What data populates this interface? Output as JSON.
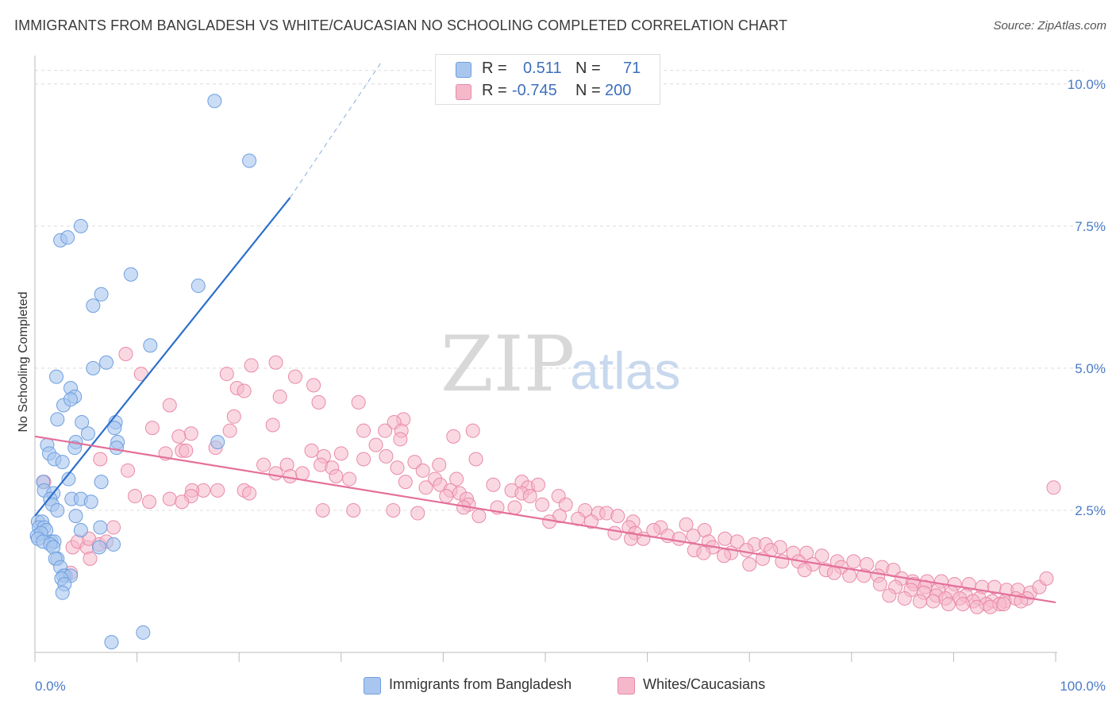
{
  "header": {
    "title": "IMMIGRANTS FROM BANGLADESH VS WHITE/CAUCASIAN NO SCHOOLING COMPLETED CORRELATION CHART",
    "source": "Source: ZipAtlas.com"
  },
  "watermark": {
    "zip": "ZIP",
    "atlas": "atlas"
  },
  "stats": {
    "r_label": "R =",
    "n_label": "N =",
    "series1": {
      "r": "0.511",
      "n": "71"
    },
    "series2": {
      "r": "-0.745",
      "n": "200"
    }
  },
  "colors": {
    "blue_fill": "#a9c6ee",
    "blue_stroke": "#6e9fe0",
    "blue_line": "#2d6fcc",
    "pink_fill": "#f5b8cb",
    "pink_stroke": "#e98aa8",
    "pink_line": "#e4709a"
  },
  "chart_data": {
    "type": "scatter",
    "title": "IMMIGRANTS FROM BANGLADESH VS WHITE/CAUCASIAN NO SCHOOLING COMPLETED CORRELATION CHART",
    "xlabel": "",
    "ylabel": "No Schooling Completed",
    "xlim": [
      0,
      100
    ],
    "ylim": [
      0,
      10.5
    ],
    "x_tick_labels": [
      "0.0%",
      "100.0%"
    ],
    "y_ticks": [
      {
        "value": 2.5,
        "label": "2.5%"
      },
      {
        "value": 5.0,
        "label": "5.0%"
      },
      {
        "value": 7.5,
        "label": "7.5%"
      },
      {
        "value": 10.0,
        "label": "10.0%"
      }
    ],
    "grid": true,
    "legend_position": "bottom-center",
    "series": [
      {
        "name": "Immigrants from Bangladesh",
        "r": 0.511,
        "n": 71,
        "trend": {
          "x0": 0,
          "y0": 2.4,
          "x1": 25,
          "y1": 8.0,
          "dashed_to": {
            "x": 34,
            "y": 10.4
          }
        },
        "points": [
          [
            17.6,
            9.7
          ],
          [
            21.0,
            8.65
          ],
          [
            4.5,
            7.5
          ],
          [
            2.5,
            7.25
          ],
          [
            3.2,
            7.3
          ],
          [
            9.4,
            6.65
          ],
          [
            16.0,
            6.45
          ],
          [
            6.5,
            6.3
          ],
          [
            5.7,
            6.1
          ],
          [
            11.3,
            5.4
          ],
          [
            5.7,
            5.0
          ],
          [
            7.0,
            5.1
          ],
          [
            2.1,
            4.85
          ],
          [
            3.5,
            4.65
          ],
          [
            3.9,
            4.5
          ],
          [
            2.8,
            4.35
          ],
          [
            3.5,
            4.45
          ],
          [
            2.2,
            4.1
          ],
          [
            4.6,
            4.05
          ],
          [
            7.9,
            4.05
          ],
          [
            5.2,
            3.85
          ],
          [
            7.8,
            3.95
          ],
          [
            1.2,
            3.65
          ],
          [
            8.1,
            3.7
          ],
          [
            4.0,
            3.7
          ],
          [
            1.4,
            3.5
          ],
          [
            17.9,
            3.7
          ],
          [
            3.9,
            3.6
          ],
          [
            8.0,
            3.6
          ],
          [
            1.9,
            3.4
          ],
          [
            2.7,
            3.35
          ],
          [
            0.8,
            3.0
          ],
          [
            0.9,
            2.85
          ],
          [
            3.3,
            3.05
          ],
          [
            6.5,
            3.0
          ],
          [
            1.8,
            2.8
          ],
          [
            1.5,
            2.7
          ],
          [
            3.6,
            2.7
          ],
          [
            4.5,
            2.7
          ],
          [
            5.5,
            2.65
          ],
          [
            1.7,
            2.6
          ],
          [
            2.2,
            2.5
          ],
          [
            0.3,
            2.3
          ],
          [
            0.7,
            2.3
          ],
          [
            4.0,
            2.4
          ],
          [
            0.4,
            2.2
          ],
          [
            0.9,
            2.2
          ],
          [
            1.1,
            2.15
          ],
          [
            0.2,
            2.05
          ],
          [
            0.6,
            2.1
          ],
          [
            6.4,
            2.2
          ],
          [
            4.5,
            2.15
          ],
          [
            0.3,
            2.0
          ],
          [
            1.6,
            1.95
          ],
          [
            1.9,
            1.95
          ],
          [
            0.8,
            1.95
          ],
          [
            1.5,
            1.9
          ],
          [
            7.7,
            1.9
          ],
          [
            1.8,
            1.85
          ],
          [
            6.3,
            1.85
          ],
          [
            2.2,
            1.65
          ],
          [
            2.0,
            1.65
          ],
          [
            2.5,
            1.5
          ],
          [
            3.0,
            1.35
          ],
          [
            2.8,
            1.35
          ],
          [
            3.5,
            1.35
          ],
          [
            2.6,
            1.3
          ],
          [
            2.9,
            1.2
          ],
          [
            2.7,
            1.05
          ],
          [
            10.6,
            0.35
          ],
          [
            7.5,
            0.18
          ]
        ]
      },
      {
        "name": "Whites/Caucasians",
        "r": -0.745,
        "n": 200,
        "trend": {
          "x0": 0,
          "y0": 3.8,
          "x1": 100,
          "y1": 0.88
        },
        "points": [
          [
            23.6,
            5.1
          ],
          [
            8.9,
            5.25
          ],
          [
            21.2,
            5.05
          ],
          [
            10.4,
            4.9
          ],
          [
            18.8,
            4.9
          ],
          [
            25.5,
            4.85
          ],
          [
            19.8,
            4.65
          ],
          [
            20.5,
            4.6
          ],
          [
            24.0,
            4.5
          ],
          [
            27.3,
            4.7
          ],
          [
            13.2,
            4.35
          ],
          [
            27.8,
            4.4
          ],
          [
            31.7,
            4.4
          ],
          [
            36.1,
            4.1
          ],
          [
            35.2,
            4.05
          ],
          [
            19.5,
            4.15
          ],
          [
            23.3,
            4.0
          ],
          [
            11.5,
            3.95
          ],
          [
            15.3,
            3.85
          ],
          [
            19.1,
            3.9
          ],
          [
            32.2,
            3.9
          ],
          [
            34.3,
            3.9
          ],
          [
            35.9,
            3.9
          ],
          [
            42.9,
            3.9
          ],
          [
            14.1,
            3.8
          ],
          [
            41.0,
            3.8
          ],
          [
            35.8,
            3.75
          ],
          [
            33.4,
            3.65
          ],
          [
            12.8,
            3.5
          ],
          [
            14.4,
            3.55
          ],
          [
            14.8,
            3.55
          ],
          [
            17.7,
            3.6
          ],
          [
            27.1,
            3.55
          ],
          [
            30.0,
            3.5
          ],
          [
            28.3,
            3.45
          ],
          [
            28.0,
            3.3
          ],
          [
            34.4,
            3.45
          ],
          [
            32.2,
            3.4
          ],
          [
            43.2,
            3.4
          ],
          [
            37.2,
            3.35
          ],
          [
            6.4,
            3.4
          ],
          [
            22.4,
            3.3
          ],
          [
            24.7,
            3.3
          ],
          [
            29.1,
            3.25
          ],
          [
            35.5,
            3.25
          ],
          [
            38.0,
            3.2
          ],
          [
            39.6,
            3.3
          ],
          [
            9.1,
            3.2
          ],
          [
            23.6,
            3.15
          ],
          [
            26.2,
            3.15
          ],
          [
            25.0,
            3.1
          ],
          [
            29.5,
            3.1
          ],
          [
            30.8,
            3.05
          ],
          [
            36.3,
            3.0
          ],
          [
            39.2,
            3.05
          ],
          [
            41.3,
            3.05
          ],
          [
            44.9,
            2.95
          ],
          [
            47.7,
            3.0
          ],
          [
            48.3,
            2.9
          ],
          [
            49.3,
            2.95
          ],
          [
            38.3,
            2.9
          ],
          [
            39.7,
            2.95
          ],
          [
            40.7,
            2.85
          ],
          [
            41.6,
            2.8
          ],
          [
            40.3,
            2.75
          ],
          [
            46.7,
            2.85
          ],
          [
            47.7,
            2.8
          ],
          [
            48.5,
            2.75
          ],
          [
            51.3,
            2.75
          ],
          [
            0.9,
            3.0
          ],
          [
            16.5,
            2.85
          ],
          [
            20.5,
            2.85
          ],
          [
            15.4,
            2.85
          ],
          [
            17.9,
            2.85
          ],
          [
            9.8,
            2.75
          ],
          [
            15.3,
            2.75
          ],
          [
            13.2,
            2.7
          ],
          [
            42.3,
            2.7
          ],
          [
            11.2,
            2.65
          ],
          [
            14.4,
            2.65
          ],
          [
            21.0,
            2.8
          ],
          [
            42.5,
            2.6
          ],
          [
            45.3,
            2.55
          ],
          [
            47.0,
            2.55
          ],
          [
            49.7,
            2.6
          ],
          [
            52.0,
            2.6
          ],
          [
            53.9,
            2.5
          ],
          [
            55.2,
            2.45
          ],
          [
            56.0,
            2.45
          ],
          [
            57.1,
            2.4
          ],
          [
            51.4,
            2.4
          ],
          [
            53.2,
            2.35
          ],
          [
            54.5,
            2.3
          ],
          [
            50.4,
            2.3
          ],
          [
            58.6,
            2.3
          ],
          [
            42.0,
            2.55
          ],
          [
            43.5,
            2.4
          ],
          [
            35.1,
            2.5
          ],
          [
            37.5,
            2.45
          ],
          [
            31.2,
            2.5
          ],
          [
            28.2,
            2.5
          ],
          [
            58.2,
            2.2
          ],
          [
            61.3,
            2.2
          ],
          [
            63.8,
            2.25
          ],
          [
            65.6,
            2.15
          ],
          [
            56.8,
            2.1
          ],
          [
            58.8,
            2.1
          ],
          [
            60.6,
            2.15
          ],
          [
            62.0,
            2.05
          ],
          [
            63.1,
            2.0
          ],
          [
            64.5,
            2.05
          ],
          [
            59.6,
            2.0
          ],
          [
            58.4,
            2.0
          ],
          [
            66.0,
            1.95
          ],
          [
            67.6,
            2.0
          ],
          [
            68.8,
            1.95
          ],
          [
            70.5,
            1.9
          ],
          [
            71.6,
            1.9
          ],
          [
            73.0,
            1.85
          ],
          [
            64.6,
            1.8
          ],
          [
            66.4,
            1.85
          ],
          [
            65.5,
            1.75
          ],
          [
            68.2,
            1.75
          ],
          [
            69.7,
            1.8
          ],
          [
            72.1,
            1.8
          ],
          [
            74.3,
            1.75
          ],
          [
            75.6,
            1.75
          ],
          [
            77.1,
            1.7
          ],
          [
            67.5,
            1.7
          ],
          [
            71.3,
            1.65
          ],
          [
            73.2,
            1.6
          ],
          [
            74.8,
            1.6
          ],
          [
            76.2,
            1.55
          ],
          [
            78.6,
            1.6
          ],
          [
            80.2,
            1.6
          ],
          [
            81.5,
            1.55
          ],
          [
            83.0,
            1.5
          ],
          [
            84.1,
            1.45
          ],
          [
            79.0,
            1.5
          ],
          [
            77.5,
            1.45
          ],
          [
            75.4,
            1.45
          ],
          [
            70.0,
            1.55
          ],
          [
            78.3,
            1.4
          ],
          [
            79.8,
            1.35
          ],
          [
            81.2,
            1.35
          ],
          [
            82.6,
            1.35
          ],
          [
            84.9,
            1.3
          ],
          [
            86.0,
            1.25
          ],
          [
            87.4,
            1.25
          ],
          [
            88.8,
            1.25
          ],
          [
            90.1,
            1.2
          ],
          [
            91.5,
            1.2
          ],
          [
            92.8,
            1.15
          ],
          [
            94.0,
            1.15
          ],
          [
            95.2,
            1.1
          ],
          [
            96.3,
            1.1
          ],
          [
            97.5,
            1.05
          ],
          [
            98.4,
            1.15
          ],
          [
            99.1,
            1.3
          ],
          [
            99.8,
            2.9
          ],
          [
            86.1,
            1.2
          ],
          [
            87.2,
            1.15
          ],
          [
            88.5,
            1.1
          ],
          [
            89.8,
            1.05
          ],
          [
            91.2,
            1.0
          ],
          [
            92.5,
            0.95
          ],
          [
            93.8,
            0.9
          ],
          [
            95.0,
            0.9
          ],
          [
            96.1,
            0.95
          ],
          [
            97.2,
            0.95
          ],
          [
            82.8,
            1.2
          ],
          [
            84.3,
            1.15
          ],
          [
            85.8,
            1.1
          ],
          [
            87.1,
            1.05
          ],
          [
            88.3,
            1.0
          ],
          [
            89.2,
            0.95
          ],
          [
            90.6,
            0.95
          ],
          [
            91.9,
            0.9
          ],
          [
            93.2,
            0.85
          ],
          [
            94.5,
            0.85
          ],
          [
            83.7,
            1.0
          ],
          [
            85.2,
            0.95
          ],
          [
            86.7,
            0.9
          ],
          [
            88.0,
            0.9
          ],
          [
            89.5,
            0.85
          ],
          [
            90.9,
            0.85
          ],
          [
            92.3,
            0.8
          ],
          [
            93.6,
            0.8
          ],
          [
            94.9,
            0.85
          ],
          [
            96.6,
            0.9
          ],
          [
            3.7,
            1.85
          ],
          [
            4.2,
            1.95
          ],
          [
            5.1,
            1.85
          ],
          [
            5.3,
            2.0
          ],
          [
            6.3,
            1.9
          ],
          [
            7.0,
            1.95
          ],
          [
            7.7,
            2.2
          ],
          [
            3.5,
            1.4
          ],
          [
            5.4,
            1.65
          ]
        ]
      }
    ]
  },
  "legend": {
    "items": [
      {
        "label": "Immigrants from Bangladesh"
      },
      {
        "label": "Whites/Caucasians"
      }
    ]
  }
}
